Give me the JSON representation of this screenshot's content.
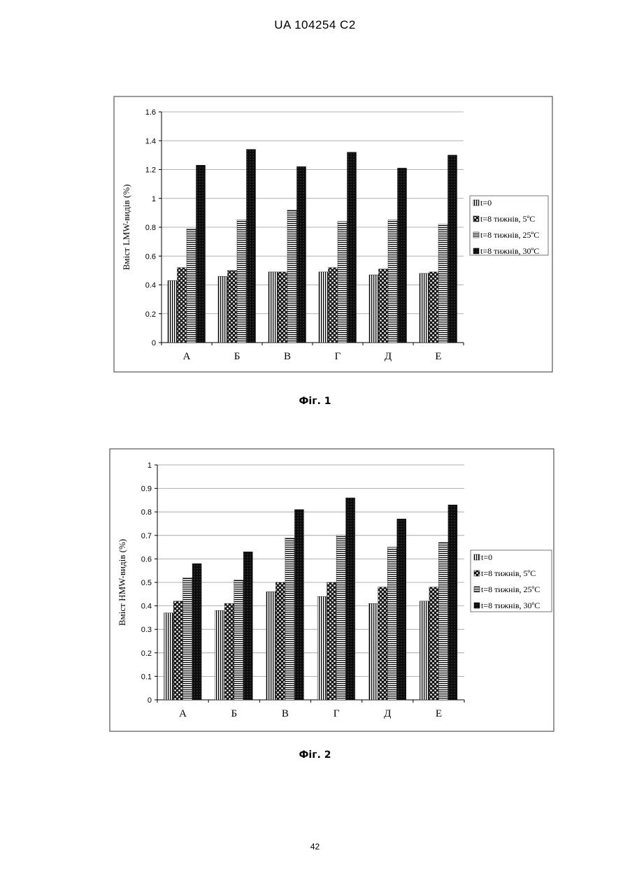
{
  "header": {
    "text": "UA   104254   C2"
  },
  "chart_data": [
    {
      "type": "bar",
      "figure_label": "Фіг. 1",
      "ylabel": "Вміст LMW-видів (%)",
      "xlabel": "",
      "categories": [
        "А",
        "Б",
        "В",
        "Г",
        "Д",
        "Е"
      ],
      "ylim": [
        0,
        1.6
      ],
      "yticks": [
        "0",
        "0.2",
        "0.4",
        "0.6",
        "0.8",
        "1",
        "1.2",
        "1.4",
        "1.6"
      ],
      "grid": true,
      "legend_position": "right",
      "series": [
        {
          "name": "t=0",
          "pattern": "vertical-lines",
          "values": [
            0.43,
            0.46,
            0.49,
            0.49,
            0.47,
            0.48
          ]
        },
        {
          "name": "t=8 тижнів, 5ºC",
          "pattern": "dots",
          "values": [
            0.52,
            0.5,
            0.49,
            0.52,
            0.51,
            0.49
          ]
        },
        {
          "name": "t=8 тижнів, 25ºC",
          "pattern": "horizontal-lines",
          "values": [
            0.79,
            0.85,
            0.92,
            0.84,
            0.85,
            0.82
          ]
        },
        {
          "name": "t=8 тижнів, 30ºC",
          "pattern": "dark-dots",
          "values": [
            1.23,
            1.34,
            1.22,
            1.32,
            1.21,
            1.3
          ]
        }
      ]
    },
    {
      "type": "bar",
      "figure_label": "Фіг. 2",
      "ylabel": "Вміст HMW-видів (%)",
      "xlabel": "",
      "categories": [
        "А",
        "Б",
        "В",
        "Г",
        "Д",
        "Е"
      ],
      "ylim": [
        0,
        1
      ],
      "yticks": [
        "0",
        "0.1",
        "0.2",
        "0.3",
        "0.4",
        "0.5",
        "0.6",
        "0.7",
        "0.8",
        "0.9",
        "1"
      ],
      "grid": true,
      "legend_position": "right",
      "series": [
        {
          "name": "t=0",
          "pattern": "vertical-lines",
          "values": [
            0.37,
            0.38,
            0.46,
            0.44,
            0.41,
            0.42
          ]
        },
        {
          "name": "t=8 тижнів, 5ºC",
          "pattern": "dots",
          "values": [
            0.42,
            0.41,
            0.5,
            0.5,
            0.48,
            0.48
          ]
        },
        {
          "name": "t=8 тижнів, 25ºC",
          "pattern": "horizontal-lines",
          "values": [
            0.52,
            0.51,
            0.69,
            0.7,
            0.65,
            0.67
          ]
        },
        {
          "name": "t=8 тижнів, 30ºC",
          "pattern": "dark-dots",
          "values": [
            0.58,
            0.63,
            0.81,
            0.86,
            0.77,
            0.83
          ]
        }
      ]
    }
  ],
  "footer": {
    "page_number": "42"
  }
}
